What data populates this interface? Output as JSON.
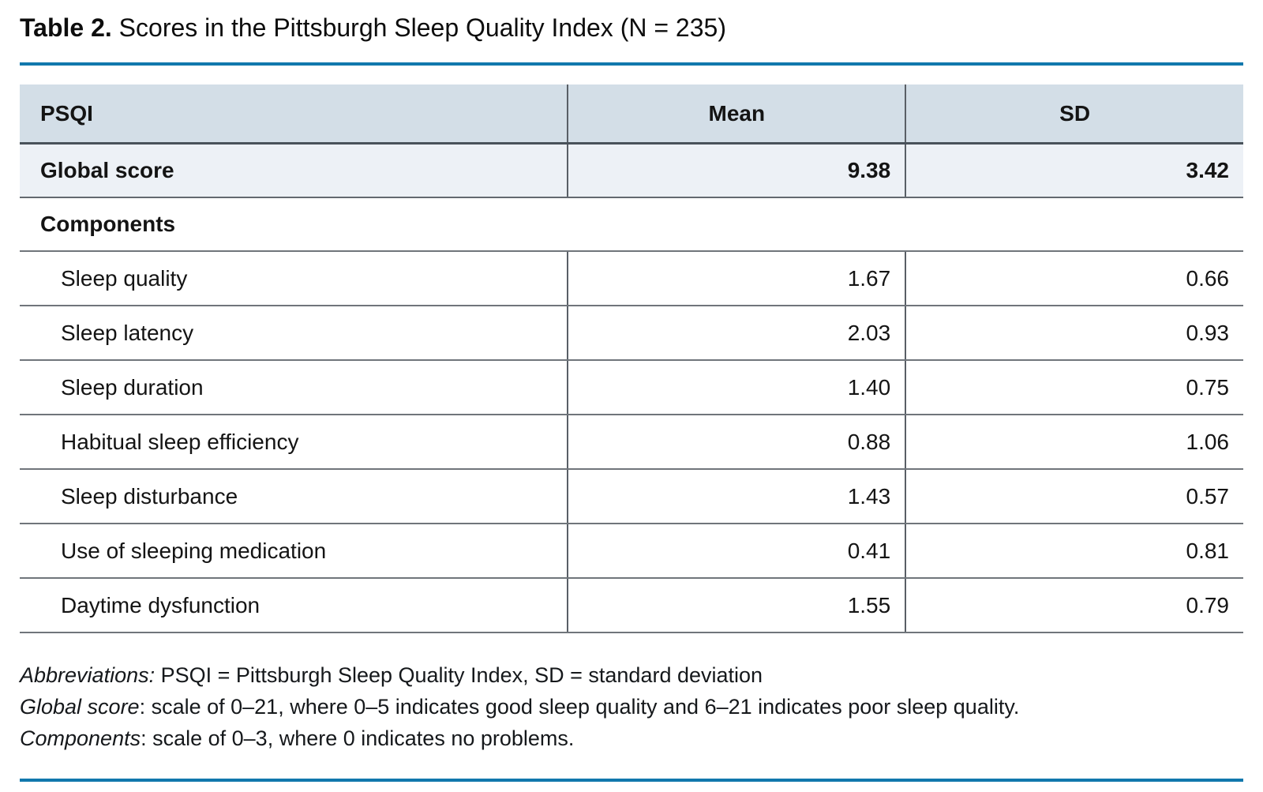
{
  "title": {
    "label": "Table 2.",
    "text": " Scores in the Pittsburgh Sleep Quality Index (N = 235)"
  },
  "colors": {
    "accent_rule": "#1178ad",
    "header_bg": "#d3dee7",
    "global_row_bg": "#edf1f6",
    "border_dark": "#49525a",
    "border_gray": "#70757b"
  },
  "table": {
    "columns": {
      "label": "PSQI",
      "mean": "Mean",
      "sd": "SD"
    },
    "global_row": {
      "label": "Global score",
      "mean": "9.38",
      "sd": "3.42"
    },
    "section_label": "Components",
    "components": [
      {
        "label": "Sleep quality",
        "mean": "1.67",
        "sd": "0.66"
      },
      {
        "label": "Sleep latency",
        "mean": "2.03",
        "sd": "0.93"
      },
      {
        "label": "Sleep duration",
        "mean": "1.40",
        "sd": "0.75"
      },
      {
        "label": "Habitual sleep efficiency",
        "mean": "0.88",
        "sd": "1.06"
      },
      {
        "label": "Sleep disturbance",
        "mean": "1.43",
        "sd": "0.57"
      },
      {
        "label": "Use of sleeping medication",
        "mean": "0.41",
        "sd": "0.81"
      },
      {
        "label": "Daytime dysfunction",
        "mean": "1.55",
        "sd": "0.79"
      }
    ]
  },
  "footnotes": [
    {
      "italic": "Abbreviations:",
      "text": " PSQI = Pittsburgh Sleep Quality Index, SD = standard deviation"
    },
    {
      "italic": "Global score",
      "text": ": scale of 0–21, where 0–5 indicates good sleep quality and 6–21 indicates poor sleep quality."
    },
    {
      "italic": "Components",
      "text": ": scale of 0–3, where 0 indicates no problems."
    }
  ],
  "chart_data": {
    "type": "table",
    "title": "Table 2. Scores in the Pittsburgh Sleep Quality Index (N = 235)",
    "columns": [
      "PSQI",
      "Mean",
      "SD"
    ],
    "rows": [
      [
        "Global score",
        9.38,
        3.42
      ],
      [
        "Sleep quality",
        1.67,
        0.66
      ],
      [
        "Sleep latency",
        2.03,
        0.93
      ],
      [
        "Sleep duration",
        1.4,
        0.75
      ],
      [
        "Habitual sleep efficiency",
        0.88,
        1.06
      ],
      [
        "Sleep disturbance",
        1.43,
        0.57
      ],
      [
        "Use of sleeping medication",
        0.41,
        0.81
      ],
      [
        "Daytime dysfunction",
        1.55,
        0.79
      ]
    ]
  }
}
